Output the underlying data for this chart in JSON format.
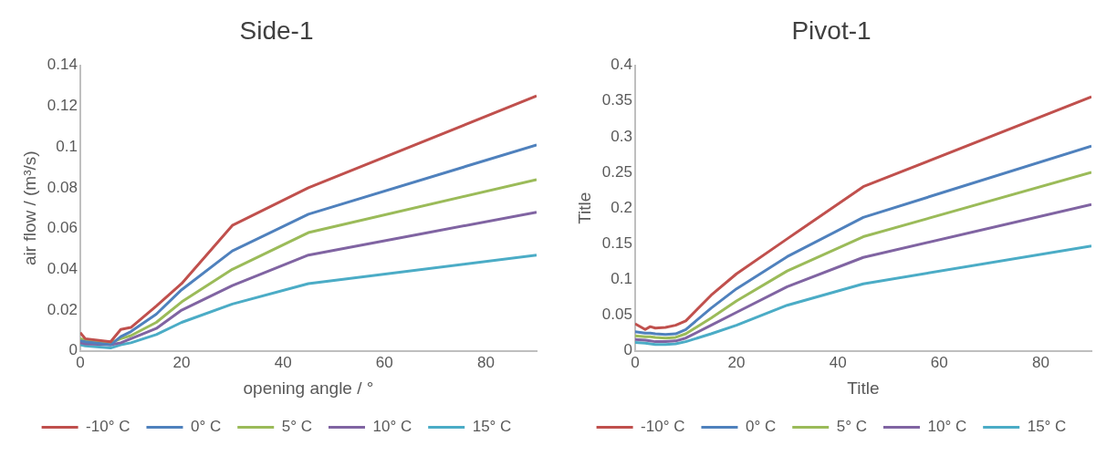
{
  "chart_data": [
    {
      "type": "line",
      "title": "Side-1",
      "xlabel": "opening angle / °",
      "ylabel": "air flow / (m³/s)",
      "x": [
        0,
        1,
        6,
        8,
        10,
        15,
        20,
        30,
        45,
        90
      ],
      "xlim": [
        0,
        90
      ],
      "xticks": [
        0,
        20,
        40,
        60,
        80
      ],
      "ylim": [
        0,
        0.14
      ],
      "yticks": [
        0,
        0.02,
        0.04,
        0.06,
        0.08,
        0.1,
        0.12,
        0.14
      ],
      "grid": false,
      "legend": "bottom",
      "marker": "none",
      "line_style": "solid",
      "series": [
        {
          "name": "-10° C",
          "color": "#c0504d",
          "values": [
            0.009,
            0.006,
            0.0045,
            0.0105,
            0.0115,
            0.022,
            0.033,
            0.0615,
            0.08,
            0.125
          ]
        },
        {
          "name": "0° C",
          "color": "#4f81bd",
          "values": [
            0.005,
            0.0045,
            0.003,
            0.007,
            0.0095,
            0.018,
            0.03,
            0.049,
            0.067,
            0.101
          ]
        },
        {
          "name": "5° C",
          "color": "#9bbb59",
          "values": [
            0.006,
            0.0055,
            0.004,
            0.006,
            0.0075,
            0.014,
            0.024,
            0.04,
            0.058,
            0.084
          ]
        },
        {
          "name": "10° C",
          "color": "#8064a2",
          "values": [
            0.004,
            0.0035,
            0.003,
            0.004,
            0.006,
            0.011,
            0.02,
            0.032,
            0.047,
            0.068
          ]
        },
        {
          "name": "15° C",
          "color": "#4bacc6",
          "values": [
            0.003,
            0.0025,
            0.0015,
            0.003,
            0.004,
            0.008,
            0.014,
            0.023,
            0.033,
            0.047
          ]
        }
      ]
    },
    {
      "type": "line",
      "title": "Pivot-1",
      "xlabel": "Title",
      "ylabel": "Title",
      "x": [
        0,
        2,
        3,
        4,
        6,
        8,
        10,
        15,
        20,
        30,
        45,
        90
      ],
      "xlim": [
        0,
        90
      ],
      "xticks": [
        0,
        20,
        40,
        60,
        80
      ],
      "ylim": [
        0,
        0.4
      ],
      "yticks": [
        0,
        0.05,
        0.1,
        0.15,
        0.2,
        0.25,
        0.3,
        0.35,
        0.4
      ],
      "grid": false,
      "legend": "bottom",
      "marker": "none",
      "line_style": "solid",
      "series": [
        {
          "name": "-10° C",
          "color": "#c0504d",
          "values": [
            0.038,
            0.03,
            0.034,
            0.032,
            0.033,
            0.036,
            0.042,
            0.078,
            0.108,
            0.157,
            0.23,
            0.356
          ]
        },
        {
          "name": "0° C",
          "color": "#4f81bd",
          "values": [
            0.027,
            0.025,
            0.025,
            0.024,
            0.023,
            0.024,
            0.03,
            0.06,
            0.087,
            0.132,
            0.187,
            0.287
          ]
        },
        {
          "name": "5° C",
          "color": "#9bbb59",
          "values": [
            0.021,
            0.02,
            0.02,
            0.019,
            0.018,
            0.019,
            0.024,
            0.046,
            0.07,
            0.112,
            0.16,
            0.25
          ]
        },
        {
          "name": "10° C",
          "color": "#8064a2",
          "values": [
            0.016,
            0.015,
            0.014,
            0.013,
            0.013,
            0.014,
            0.018,
            0.036,
            0.054,
            0.09,
            0.131,
            0.205
          ]
        },
        {
          "name": "15° C",
          "color": "#4bacc6",
          "values": [
            0.012,
            0.011,
            0.01,
            0.009,
            0.009,
            0.01,
            0.013,
            0.024,
            0.036,
            0.064,
            0.094,
            0.147
          ]
        }
      ]
    }
  ]
}
